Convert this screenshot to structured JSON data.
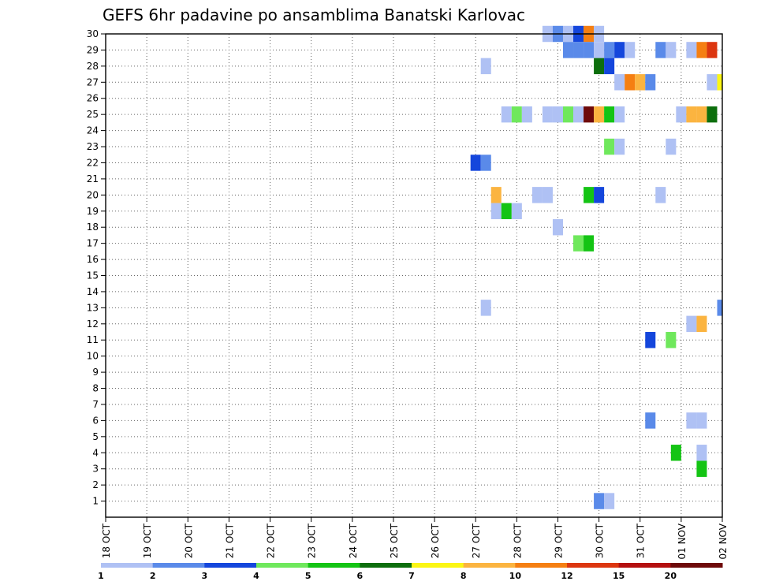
{
  "chart_data": {
    "type": "heatmap",
    "title": "GEFS 6hr padavine po ansamblima Banatski Karlovac",
    "x_tick_labels": [
      "18 OCT",
      "19 OCT",
      "20 OCT",
      "21 OCT",
      "22 OCT",
      "23 OCT",
      "24 OCT",
      "25 OCT",
      "26 OCT",
      "27 OCT",
      "28 OCT",
      "29 OCT",
      "30 OCT",
      "31 OCT",
      "01 NOV",
      "02 NOV"
    ],
    "y_tick_labels": [
      "1",
      "2",
      "3",
      "4",
      "5",
      "6",
      "7",
      "8",
      "9",
      "10",
      "11",
      "12",
      "13",
      "14",
      "15",
      "16",
      "17",
      "18",
      "19",
      "20",
      "21",
      "22",
      "23",
      "24",
      "25",
      "26",
      "27",
      "28",
      "29",
      "30"
    ],
    "x_range_days": [
      0,
      15
    ],
    "y_range": [
      0,
      30
    ],
    "grid": true,
    "legend_position": "bottom",
    "legend_levels": [
      "1",
      "2",
      "3",
      "4",
      "5",
      "6",
      "7",
      "8",
      "10",
      "12",
      "15",
      "20"
    ],
    "legend_colors": [
      "#afc1f4",
      "#5a8ae9",
      "#1446dc",
      "#6fe85c",
      "#14c414",
      "#0d6e0d",
      "#fbf614",
      "#fbb440",
      "#f57f12",
      "#dc3610",
      "#b41010",
      "#6e0a0a"
    ],
    "cells_note": "each cell: [member, day offset from 18 OCT 00Z, color index into legend_colors]",
    "cells": [
      [
        30,
        10.75,
        0
      ],
      [
        30,
        11.0,
        1
      ],
      [
        30,
        11.25,
        0
      ],
      [
        30,
        11.5,
        2
      ],
      [
        30,
        11.75,
        8
      ],
      [
        30,
        12.0,
        0
      ],
      [
        29,
        11.25,
        1
      ],
      [
        29,
        11.5,
        1
      ],
      [
        29,
        11.75,
        1
      ],
      [
        29,
        12.0,
        0
      ],
      [
        29,
        12.25,
        1
      ],
      [
        29,
        12.5,
        2
      ],
      [
        29,
        12.75,
        0
      ],
      [
        29,
        13.5,
        1
      ],
      [
        29,
        13.75,
        0
      ],
      [
        29,
        14.25,
        0
      ],
      [
        29,
        14.5,
        8
      ],
      [
        29,
        14.75,
        9
      ],
      [
        28,
        9.25,
        0
      ],
      [
        28,
        12.0,
        5
      ],
      [
        28,
        12.25,
        2
      ],
      [
        27,
        12.5,
        0
      ],
      [
        27,
        12.75,
        8
      ],
      [
        27,
        13.0,
        7
      ],
      [
        27,
        13.25,
        1
      ],
      [
        27,
        14.75,
        0
      ],
      [
        27,
        15.0,
        6
      ],
      [
        25,
        9.75,
        0
      ],
      [
        25,
        10.0,
        3
      ],
      [
        25,
        10.25,
        0
      ],
      [
        25,
        10.75,
        0
      ],
      [
        25,
        11.0,
        0
      ],
      [
        25,
        11.25,
        3
      ],
      [
        25,
        11.5,
        0
      ],
      [
        25,
        11.75,
        11
      ],
      [
        25,
        12.0,
        7
      ],
      [
        25,
        12.25,
        4
      ],
      [
        25,
        12.5,
        0
      ],
      [
        25,
        14.0,
        0
      ],
      [
        25,
        14.25,
        7
      ],
      [
        25,
        14.5,
        7
      ],
      [
        25,
        14.75,
        5
      ],
      [
        23,
        12.25,
        3
      ],
      [
        23,
        12.5,
        0
      ],
      [
        23,
        13.75,
        0
      ],
      [
        22,
        9.0,
        2
      ],
      [
        22,
        9.25,
        1
      ],
      [
        20,
        9.5,
        7
      ],
      [
        20,
        10.5,
        0
      ],
      [
        20,
        10.75,
        0
      ],
      [
        20,
        11.75,
        4
      ],
      [
        20,
        12.0,
        2
      ],
      [
        20,
        13.5,
        0
      ],
      [
        19,
        9.5,
        0
      ],
      [
        19,
        9.75,
        4
      ],
      [
        19,
        10.0,
        0
      ],
      [
        18,
        11.0,
        0
      ],
      [
        17,
        11.5,
        3
      ],
      [
        17,
        11.75,
        4
      ],
      [
        13,
        9.25,
        0
      ],
      [
        13,
        15.0,
        1
      ],
      [
        12,
        14.25,
        0
      ],
      [
        12,
        14.5,
        7
      ],
      [
        11,
        13.25,
        2
      ],
      [
        11,
        13.75,
        3
      ],
      [
        6,
        13.25,
        1
      ],
      [
        6,
        14.25,
        0
      ],
      [
        6,
        14.5,
        0
      ],
      [
        4,
        13.875,
        4
      ],
      [
        4,
        14.5,
        0
      ],
      [
        3,
        14.5,
        4
      ],
      [
        1,
        12.0,
        1
      ],
      [
        1,
        12.25,
        0
      ]
    ]
  }
}
